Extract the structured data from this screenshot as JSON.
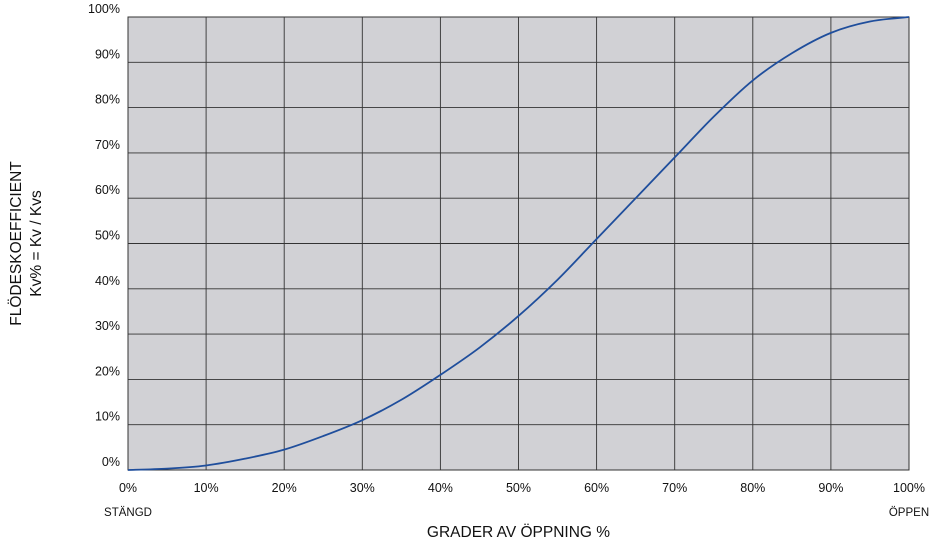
{
  "chart_data": {
    "type": "line",
    "title": "",
    "xlabel": "GRADER AV ÖPPNING %",
    "ylabel": [
      "FLÖDESKOEFFICIENT",
      "Kv% = Kv / Kvs"
    ],
    "x_end_labels": {
      "start": "STÄNGD",
      "end": "ÖPPEN"
    },
    "xlim": [
      0,
      100
    ],
    "ylim": [
      0,
      100
    ],
    "x_ticks": [
      0,
      10,
      20,
      30,
      40,
      50,
      60,
      70,
      80,
      90,
      100
    ],
    "y_ticks": [
      0,
      10,
      20,
      30,
      40,
      50,
      60,
      70,
      80,
      90,
      100
    ],
    "x_tick_labels": [
      "0%",
      "10%",
      "20%",
      "30%",
      "40%",
      "50%",
      "60%",
      "70%",
      "80%",
      "90%",
      "100%"
    ],
    "y_tick_labels": [
      "0%",
      "10%",
      "20%",
      "30%",
      "40%",
      "50%",
      "60%",
      "70%",
      "80%",
      "90%",
      "100%"
    ],
    "grid": true,
    "series": [
      {
        "x": [
          0,
          5,
          10,
          15,
          20,
          25,
          30,
          35,
          40,
          45,
          50,
          55,
          60,
          65,
          70,
          75,
          80,
          85,
          90,
          95,
          100
        ],
        "y": [
          0,
          0.3,
          1,
          2.5,
          4.5,
          7.5,
          11,
          15.5,
          21,
          27,
          34,
          42,
          51,
          60,
          69,
          78,
          86,
          92,
          96.5,
          99,
          100
        ]
      }
    ],
    "colors": {
      "plot_background": "#d1d1d5",
      "grid": "#333333",
      "line": "#1f4e9c"
    }
  }
}
